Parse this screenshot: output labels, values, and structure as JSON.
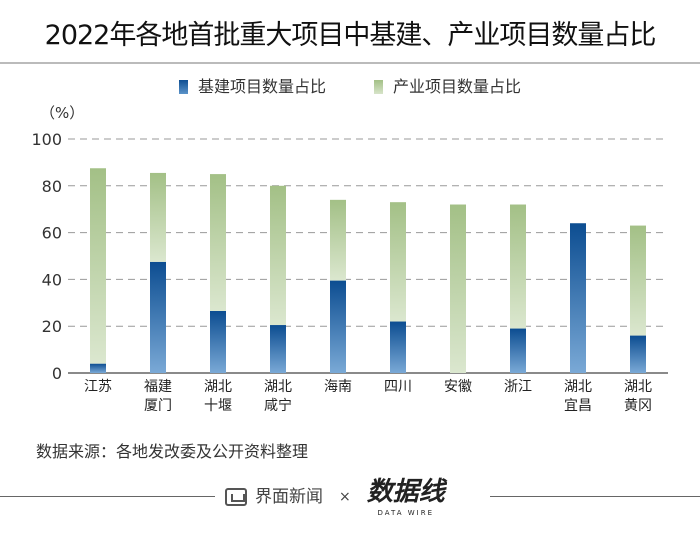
{
  "title": "2022年各地首批重大项目中基建、产业项目数量占比",
  "source": "数据来源：各地发改委及公开资料整理",
  "footer": {
    "brand": "界面新闻",
    "times": "×",
    "partner": "数据线",
    "partner_sub": "DATA WIRE"
  },
  "chart_data": {
    "type": "bar",
    "stacked": true,
    "title": "2022年各地首批重大项目中基建、产业项目数量占比",
    "ylabel": "（%）",
    "ylim": [
      0,
      100
    ],
    "yticks": [
      "0",
      "20",
      "40",
      "60",
      "80",
      "100"
    ],
    "grid": true,
    "legend_position": "top-center",
    "categories": [
      [
        "江苏"
      ],
      [
        "福建",
        "厦门"
      ],
      [
        "湖北",
        "十堰"
      ],
      [
        "湖北",
        "咸宁"
      ],
      [
        "海南"
      ],
      [
        "四川"
      ],
      [
        "安徽"
      ],
      [
        "浙江"
      ],
      [
        "湖北",
        "宜昌"
      ],
      [
        "湖北",
        "黄冈"
      ]
    ],
    "series": [
      {
        "name": "基建项目数量占比",
        "color": "#1f5fa3",
        "values": [
          4,
          47.5,
          26.5,
          20.5,
          39.5,
          22,
          0,
          19,
          64,
          16
        ]
      },
      {
        "name": "产业项目数量占比",
        "color": "#a8c48a",
        "values": [
          83.5,
          38,
          58.5,
          59.5,
          34.5,
          51,
          72,
          53,
          0,
          47
        ]
      }
    ]
  }
}
